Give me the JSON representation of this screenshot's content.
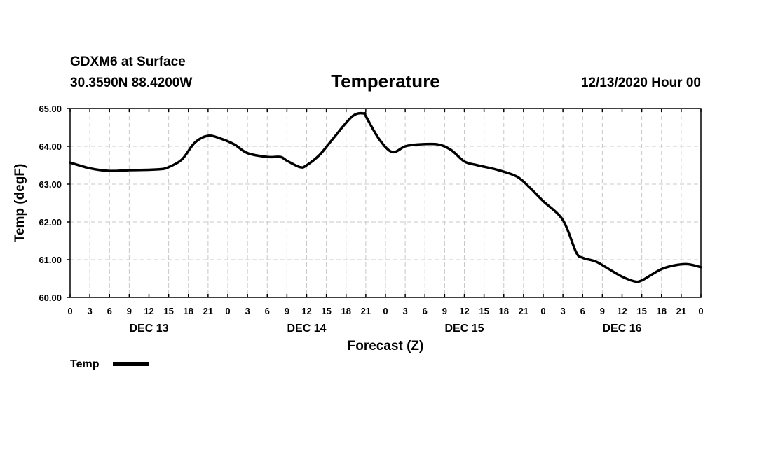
{
  "header": {
    "station": "GDXM6 at Surface",
    "location": "30.3590N 88.4200W",
    "datetime": "12/13/2020 Hour 00"
  },
  "chart_data": {
    "type": "line",
    "title": "Temperature",
    "xlabel": "Forecast (Z)",
    "ylabel": "Temp (degF)",
    "ylim": [
      60,
      65
    ],
    "xlim": [
      0,
      96
    ],
    "y_ticks": [
      "60.00",
      "61.00",
      "62.00",
      "63.00",
      "64.00",
      "65.00"
    ],
    "x_ticks": [
      "0",
      "3",
      "6",
      "9",
      "12",
      "15",
      "18",
      "21",
      "0",
      "3",
      "6",
      "9",
      "12",
      "15",
      "18",
      "21",
      "0",
      "3",
      "6",
      "9",
      "12",
      "15",
      "18",
      "21",
      "0",
      "3",
      "6",
      "9",
      "12",
      "15",
      "18",
      "21",
      "0"
    ],
    "day_labels": [
      {
        "label": "DEC 13",
        "hour": 12
      },
      {
        "label": "DEC 14",
        "hour": 36
      },
      {
        "label": "DEC 15",
        "hour": 60
      },
      {
        "label": "DEC 16",
        "hour": 84
      }
    ],
    "grid": true,
    "legend": "bottom-left",
    "series": [
      {
        "name": "Temp",
        "color": "#000000",
        "x": [
          0,
          3,
          6,
          9,
          12,
          14,
          15,
          17,
          19,
          21,
          23,
          25,
          27,
          30,
          32,
          33,
          35,
          36,
          38,
          40,
          43,
          44.8,
          45,
          47,
          49,
          51,
          53,
          56,
          58,
          60,
          62,
          65,
          68,
          70,
          72,
          75,
          77,
          78,
          80,
          82,
          84,
          86,
          87,
          88,
          90,
          92,
          94,
          96
        ],
        "values": [
          63.57,
          63.42,
          63.35,
          63.37,
          63.38,
          63.4,
          63.45,
          63.65,
          64.1,
          64.28,
          64.2,
          64.05,
          63.82,
          63.72,
          63.72,
          63.62,
          63.45,
          63.5,
          63.78,
          64.2,
          64.8,
          64.87,
          64.8,
          64.2,
          63.85,
          64.0,
          64.05,
          64.05,
          63.9,
          63.6,
          63.5,
          63.38,
          63.2,
          62.9,
          62.55,
          62.05,
          61.2,
          61.05,
          60.95,
          60.75,
          60.55,
          60.42,
          60.45,
          60.55,
          60.75,
          60.85,
          60.88,
          60.8
        ]
      }
    ]
  }
}
